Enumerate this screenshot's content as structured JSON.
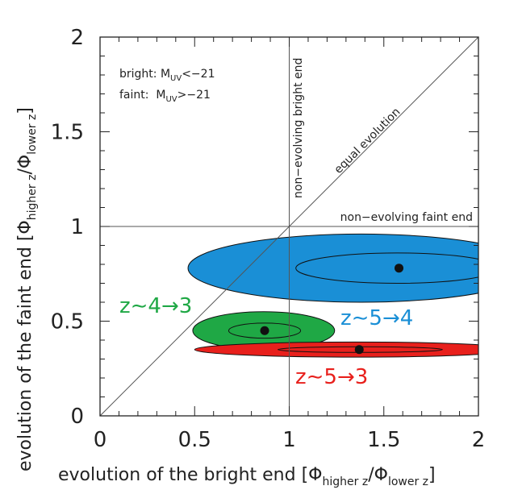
{
  "chart_data": {
    "type": "scatter",
    "title": "",
    "xlabel": "evolution of the bright end",
    "xlabel_sub": "higher z",
    "xlabel_sub2": "lower z",
    "ylabel": "evolution of the faint end",
    "ylabel_sub": "higher z",
    "ylabel_sub2": "lower z",
    "phi": "Φ",
    "xlim": [
      0,
      2
    ],
    "ylim": [
      0,
      2
    ],
    "xticks": [
      "0",
      "0.5",
      "1",
      "1.5",
      "2"
    ],
    "yticks": [
      "0",
      "0.5",
      "1",
      "1.5",
      "2"
    ],
    "tick_values": [
      0,
      0.5,
      1,
      1.5,
      2
    ],
    "grid": false,
    "legend_box": {
      "bright_prefix": "bright: M",
      "bright_suffix": "<−21",
      "faint_prefix": "faint:  M",
      "faint_suffix": ">−21",
      "subscript": "UV"
    },
    "reference_lines": {
      "vertical": {
        "x": 1,
        "label": "non−evolving bright end"
      },
      "horizontal": {
        "y": 1,
        "label": "non−evolving faint end"
      },
      "diagonal": {
        "label": "equal evolution"
      }
    },
    "series": [
      {
        "name": "z∼5→4",
        "color": "#1a8fd6",
        "point": {
          "x": 1.58,
          "y": 0.78
        },
        "outer": {
          "xmin": 0.47,
          "xmax": 2.3,
          "ymin": 0.6,
          "ymax": 0.96,
          "cx": 1.38
        },
        "inner": {
          "xmin": 1.03,
          "xmax": 2.1,
          "ymin": 0.7,
          "ymax": 0.86,
          "cx": 1.57
        }
      },
      {
        "name": "z∼4→3",
        "color": "#1fa845",
        "point": {
          "x": 0.87,
          "y": 0.45
        },
        "outer": {
          "xmin": 0.49,
          "xmax": 1.24,
          "ymin": 0.35,
          "ymax": 0.55,
          "cx": 0.865
        },
        "inner": {
          "xmin": 0.68,
          "xmax": 1.06,
          "ymin": 0.41,
          "ymax": 0.49,
          "cx": 0.87
        }
      },
      {
        "name": "z∼5→3",
        "color": "#e8201c",
        "point": {
          "x": 1.37,
          "y": 0.35
        },
        "outer": {
          "xmin": 0.5,
          "xmax": 2.2,
          "ymin": 0.31,
          "ymax": 0.39,
          "cx": 1.35
        },
        "inner": {
          "xmin": 0.94,
          "xmax": 1.81,
          "ymin": 0.335,
          "ymax": 0.365,
          "cx": 1.375
        }
      }
    ]
  }
}
